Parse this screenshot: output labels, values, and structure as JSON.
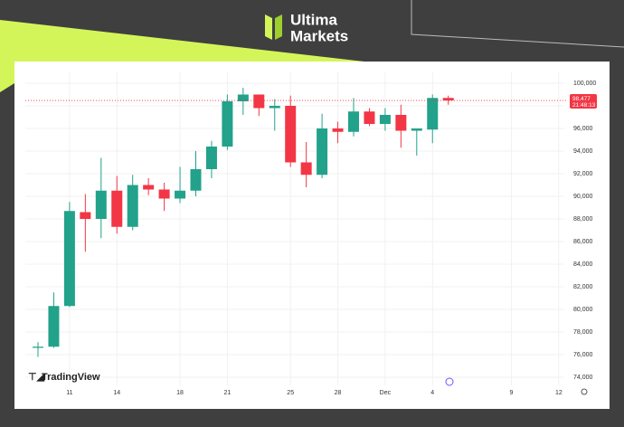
{
  "brand": {
    "line1": "Ultima",
    "line2": "Markets"
  },
  "chart_data": {
    "type": "candlestick",
    "watermark": "TradingView",
    "categories": [
      null,
      null,
      "11",
      null,
      null,
      "14",
      null,
      null,
      null,
      "18",
      null,
      null,
      "21",
      null,
      null,
      null,
      "25",
      null,
      null,
      "28",
      null,
      null,
      "Dec",
      null,
      null,
      "4",
      null,
      null,
      null,
      null,
      "9",
      null,
      null,
      "12"
    ],
    "open": [
      76600,
      76700,
      80300,
      88600,
      88000,
      90500,
      87300,
      91000,
      90600,
      89800,
      90500,
      92400,
      94400,
      98400,
      99000,
      97800,
      98000,
      93000,
      91900,
      96000,
      95700,
      97500,
      96400,
      97200,
      95800,
      95900,
      98700,
      null,
      null,
      null,
      null,
      null,
      null,
      null
    ],
    "high": [
      77100,
      81500,
      89500,
      90200,
      93400,
      91800,
      91900,
      91600,
      91200,
      92600,
      94000,
      94900,
      99000,
      99600,
      99000,
      98600,
      98900,
      94800,
      97300,
      96600,
      98700,
      97800,
      97800,
      98100,
      96000,
      99000,
      98900,
      null,
      null,
      null,
      null,
      null,
      null,
      null
    ],
    "low": [
      75800,
      76600,
      80200,
      85100,
      86300,
      86700,
      87000,
      90100,
      88700,
      89400,
      90000,
      91600,
      94100,
      97200,
      97100,
      95800,
      92600,
      90800,
      91600,
      94700,
      95300,
      96200,
      95800,
      94300,
      93600,
      94700,
      98100,
      null,
      null,
      null,
      null,
      null,
      null,
      null
    ],
    "close": [
      76700,
      80300,
      88700,
      88000,
      90500,
      87300,
      91000,
      90600,
      89800,
      90500,
      92400,
      94400,
      98400,
      99000,
      97800,
      98000,
      93000,
      91900,
      96000,
      95700,
      97500,
      96400,
      97200,
      95800,
      96000,
      98700,
      98477,
      null,
      null,
      null,
      null,
      null,
      null,
      null
    ],
    "up_color": "#22a28a",
    "down_color": "#f23645",
    "ylim": [
      73000,
      101000
    ],
    "yticks": [
      {
        "value": 74000,
        "label": "74,000"
      },
      {
        "value": 76000,
        "label": "76,000"
      },
      {
        "value": 78000,
        "label": "78,000"
      },
      {
        "value": 80000,
        "label": "80,000"
      },
      {
        "value": 82000,
        "label": "82,000"
      },
      {
        "value": 84000,
        "label": "84,000"
      },
      {
        "value": 86000,
        "label": "86,000"
      },
      {
        "value": 88000,
        "label": "88,000"
      },
      {
        "value": 90000,
        "label": "90,000"
      },
      {
        "value": 92000,
        "label": "92,000"
      },
      {
        "value": 94000,
        "label": "94,000"
      },
      {
        "value": 96000,
        "label": "96,000"
      },
      {
        "value": 98000,
        "label": "98,000"
      },
      {
        "value": 100000,
        "label": "100,000"
      }
    ],
    "current_price": {
      "value": 98477,
      "label": "98,477"
    },
    "countdown": "21:48:13",
    "grid": true
  }
}
